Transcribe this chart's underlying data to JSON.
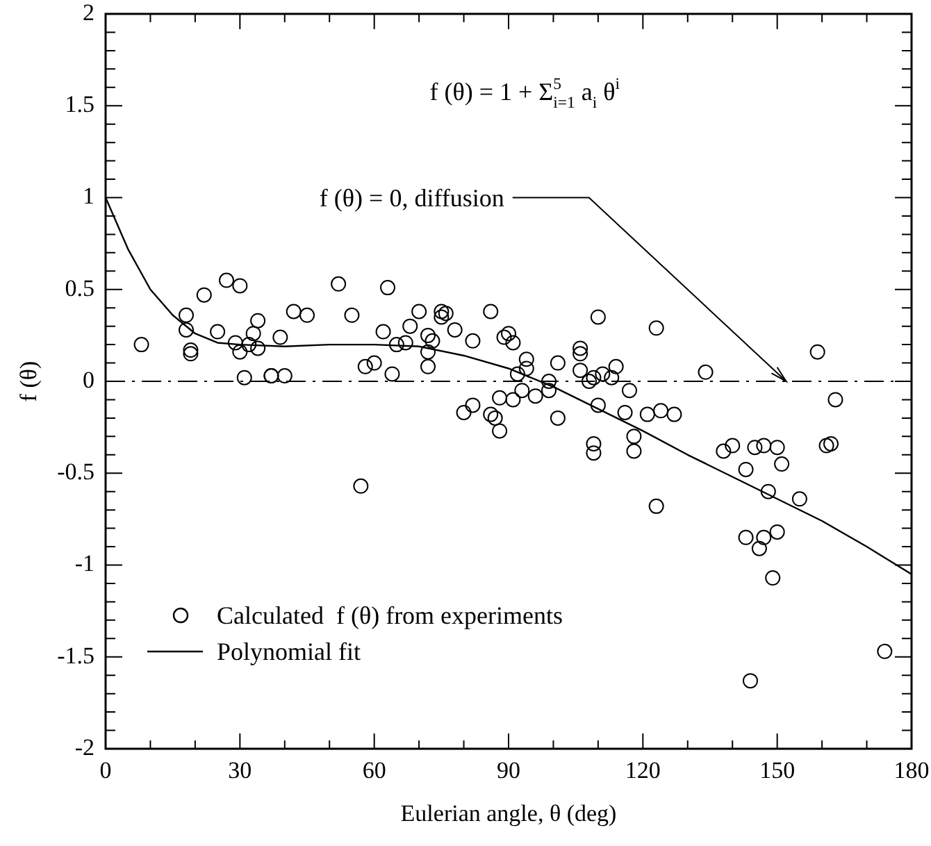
{
  "chart_data": {
    "type": "scatter",
    "xlabel": "Eulerian angle, θ (deg)",
    "ylabel": "f (θ)",
    "xlim": [
      0,
      180
    ],
    "ylim": [
      -2,
      2
    ],
    "xticks": [
      0,
      {
        "value": 10,
        "label": null
      },
      {
        "value": 20,
        "label": null
      },
      30,
      {
        "value": 40,
        "label": null
      },
      {
        "value": 50,
        "label": null
      },
      60,
      {
        "value": 70,
        "label": null
      },
      {
        "value": 80,
        "label": null
      },
      90,
      {
        "value": 100,
        "label": null
      },
      {
        "value": 110,
        "label": null
      },
      120,
      {
        "value": 130,
        "label": null
      },
      {
        "value": 140,
        "label": null
      },
      150,
      {
        "value": 160,
        "label": null
      },
      {
        "value": 170,
        "label": null
      },
      180
    ],
    "yticks": [
      -2,
      {
        "value": -1.9,
        "label": null
      },
      {
        "value": -1.8,
        "label": null
      },
      {
        "value": -1.7,
        "label": null
      },
      {
        "value": -1.6,
        "label": null
      },
      -1.5,
      {
        "value": -1.4,
        "label": null
      },
      {
        "value": -1.3,
        "label": null
      },
      {
        "value": -1.2,
        "label": null
      },
      {
        "value": -1.1,
        "label": null
      },
      -1,
      {
        "value": -0.9,
        "label": null
      },
      {
        "value": -0.8,
        "label": null
      },
      {
        "value": -0.7,
        "label": null
      },
      {
        "value": -0.6,
        "label": null
      },
      -0.5,
      {
        "value": -0.4,
        "label": null
      },
      {
        "value": -0.3,
        "label": null
      },
      {
        "value": -0.2,
        "label": null
      },
      {
        "value": -0.1,
        "label": null
      },
      0,
      {
        "value": 0.1,
        "label": null
      },
      {
        "value": 0.2,
        "label": null
      },
      {
        "value": 0.3,
        "label": null
      },
      {
        "value": 0.4,
        "label": null
      },
      0.5,
      {
        "value": 0.6,
        "label": null
      },
      {
        "value": 0.7,
        "label": null
      },
      {
        "value": 0.8,
        "label": null
      },
      {
        "value": 0.9,
        "label": null
      },
      1,
      {
        "value": 1.1,
        "label": null
      },
      {
        "value": 1.2,
        "label": null
      },
      {
        "value": 1.3,
        "label": null
      },
      {
        "value": 1.4,
        "label": null
      },
      1.5,
      {
        "value": 1.6,
        "label": null
      },
      {
        "value": 1.7,
        "label": null
      },
      {
        "value": 1.8,
        "label": null
      },
      {
        "value": 1.9,
        "label": null
      },
      2
    ],
    "legend": "bottom left",
    "marker": "circle",
    "ref_lines": [
      {
        "axis": "y",
        "value": 0,
        "line_style": "dashdot",
        "color": "#000000"
      }
    ],
    "annotations": [
      "f (θ) = 1 + Σ$_{i=1}$$^{5}$ a$_{i}$ θ$^{i}$",
      {
        "text": "f (θ) = 0, diffusion",
        "x": 152,
        "y": 0
      }
    ],
    "series": [
      {
        "name": "Calculated  f (θ) from experiments",
        "color": "#000000",
        "x": [
          8,
          18,
          18,
          19,
          19,
          22,
          25,
          27,
          29,
          30,
          30,
          31,
          32,
          33,
          34,
          34,
          37,
          37,
          39,
          40,
          42,
          45,
          52,
          55,
          57,
          58,
          60,
          62,
          63,
          64,
          65,
          67,
          68,
          70,
          72,
          72,
          72,
          73,
          75,
          75,
          76,
          78,
          80,
          82,
          82,
          86,
          86,
          87,
          88,
          88,
          89,
          90,
          91,
          91,
          92,
          93,
          94,
          94,
          96,
          99,
          99,
          101,
          101,
          106,
          106,
          106,
          108,
          109,
          109,
          109,
          110,
          110,
          111,
          113,
          114,
          116,
          117,
          118,
          118,
          121,
          123,
          123,
          124,
          127,
          134,
          138,
          140,
          143,
          143,
          144,
          145,
          146,
          147,
          147,
          148,
          149,
          150,
          151,
          150,
          155,
          159,
          161,
          162,
          163,
          174
        ],
        "values": [
          0.2,
          0.36,
          0.28,
          0.17,
          0.15,
          0.47,
          0.27,
          0.55,
          0.21,
          0.52,
          0.16,
          0.02,
          0.2,
          0.26,
          0.33,
          0.18,
          0.03,
          0.03,
          0.24,
          0.03,
          0.38,
          0.36,
          0.53,
          0.36,
          -0.57,
          0.08,
          0.1,
          0.27,
          0.51,
          0.04,
          0.2,
          0.21,
          0.3,
          0.38,
          0.25,
          0.16,
          0.08,
          0.22,
          0.35,
          0.38,
          0.37,
          0.28,
          -0.17,
          0.22,
          -0.13,
          0.38,
          -0.18,
          -0.2,
          -0.27,
          -0.09,
          0.24,
          0.26,
          0.21,
          -0.1,
          0.04,
          -0.05,
          0.12,
          0.07,
          -0.08,
          0,
          -0.05,
          -0.2,
          0.1,
          0.18,
          0.15,
          0.06,
          0,
          0.02,
          -0.34,
          -0.39,
          0.35,
          -0.13,
          0.04,
          0.02,
          0.08,
          -0.17,
          -0.05,
          -0.3,
          -0.38,
          -0.18,
          0.29,
          -0.68,
          -0.16,
          -0.18,
          0.05,
          -0.38,
          -0.35,
          -0.48,
          -0.85,
          -1.63,
          -0.36,
          -0.91,
          -0.85,
          -0.35,
          -0.6,
          -1.07,
          -0.82,
          -0.45,
          -0.36,
          -0.64,
          0.16,
          -0.35,
          -0.34,
          -0.1,
          -1.47
        ]
      },
      {
        "name": "Polynomial fit",
        "type": "line",
        "color": "#000000",
        "marker": "none",
        "line_style": "solid",
        "x": [
          0,
          5,
          10,
          15,
          20,
          25,
          30,
          40,
          50,
          60,
          70,
          80,
          90,
          100,
          110,
          120,
          130,
          140,
          150,
          160,
          170,
          180
        ],
        "values": [
          1,
          0.72,
          0.5,
          0.36,
          0.26,
          0.21,
          0.2,
          0.19,
          0.2,
          0.2,
          0.19,
          0.14,
          0.07,
          -0.03,
          -0.15,
          -0.27,
          -0.4,
          -0.52,
          -0.64,
          -0.76,
          -0.9,
          -1.05
        ]
      }
    ]
  }
}
